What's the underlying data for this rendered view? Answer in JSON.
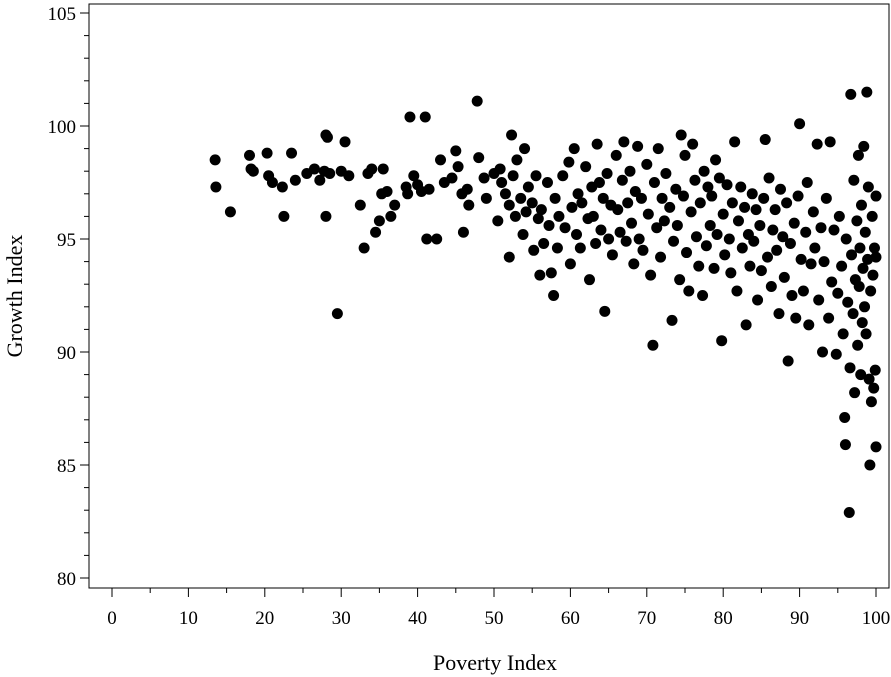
{
  "chart_data": {
    "type": "scatter",
    "title": "",
    "xlabel": "Poverty Index",
    "ylabel": "Growth Index",
    "xlim": [
      0,
      100
    ],
    "ylim": [
      80,
      105
    ],
    "x_ticks": [
      "0",
      "10",
      "20",
      "30",
      "40",
      "50",
      "60",
      "70",
      "80",
      "90",
      "100"
    ],
    "y_ticks": [
      "80",
      "85",
      "90",
      "95",
      "100",
      "105"
    ],
    "grid": false,
    "marker_color": "#000000",
    "points": [
      [
        13.5,
        98.5
      ],
      [
        13.6,
        97.3
      ],
      [
        15.5,
        96.2
      ],
      [
        18,
        98.7
      ],
      [
        18.2,
        98.1
      ],
      [
        18.5,
        98.0
      ],
      [
        20.3,
        98.8
      ],
      [
        20.5,
        97.8
      ],
      [
        21,
        97.5
      ],
      [
        22.3,
        97.3
      ],
      [
        22.5,
        96.0
      ],
      [
        23.5,
        98.8
      ],
      [
        24,
        97.6
      ],
      [
        25.5,
        97.9
      ],
      [
        26.5,
        98.1
      ],
      [
        27.2,
        97.6
      ],
      [
        28,
        99.6
      ],
      [
        28.2,
        99.5
      ],
      [
        27.8,
        98.0
      ],
      [
        28.5,
        97.9
      ],
      [
        28,
        96.0
      ],
      [
        29.5,
        91.7
      ],
      [
        30,
        98.0
      ],
      [
        30.5,
        99.3
      ],
      [
        31,
        97.8
      ],
      [
        32.5,
        96.5
      ],
      [
        33,
        94.6
      ],
      [
        33.5,
        97.9
      ],
      [
        34,
        98.1
      ],
      [
        34.5,
        95.3
      ],
      [
        35,
        95.8
      ],
      [
        35.3,
        97.0
      ],
      [
        35.5,
        98.1
      ],
      [
        36,
        97.1
      ],
      [
        36.5,
        96.0
      ],
      [
        37,
        96.5
      ],
      [
        38.5,
        97.3
      ],
      [
        38.7,
        97.0
      ],
      [
        39,
        100.4
      ],
      [
        39.5,
        97.8
      ],
      [
        40,
        97.4
      ],
      [
        40.5,
        97.1
      ],
      [
        41,
        100.4
      ],
      [
        41.2,
        95.0
      ],
      [
        41.5,
        97.2
      ],
      [
        42.5,
        95.0
      ],
      [
        43,
        98.5
      ],
      [
        43.5,
        97.5
      ],
      [
        44.5,
        97.7
      ],
      [
        45,
        98.9
      ],
      [
        45.3,
        98.2
      ],
      [
        45.8,
        97.0
      ],
      [
        46,
        95.3
      ],
      [
        46.5,
        97.2
      ],
      [
        46.7,
        96.5
      ],
      [
        47.8,
        101.1
      ],
      [
        48,
        98.6
      ],
      [
        48.7,
        97.7
      ],
      [
        49,
        96.8
      ],
      [
        50,
        97.9
      ],
      [
        50.5,
        95.8
      ],
      [
        50.8,
        98.1
      ],
      [
        51,
        97.5
      ],
      [
        51.5,
        97.0
      ],
      [
        52,
        96.5
      ],
      [
        52,
        94.2
      ],
      [
        52.3,
        99.6
      ],
      [
        52.5,
        97.8
      ],
      [
        52.8,
        96.0
      ],
      [
        53,
        98.5
      ],
      [
        53.5,
        96.8
      ],
      [
        53.8,
        95.2
      ],
      [
        54,
        99.0
      ],
      [
        54.2,
        96.2
      ],
      [
        54.5,
        97.3
      ],
      [
        55,
        96.6
      ],
      [
        55.2,
        94.5
      ],
      [
        55.5,
        97.8
      ],
      [
        55.8,
        95.9
      ],
      [
        56,
        93.4
      ],
      [
        56.2,
        96.3
      ],
      [
        56.5,
        94.8
      ],
      [
        57,
        97.5
      ],
      [
        57.2,
        95.6
      ],
      [
        57.5,
        93.5
      ],
      [
        57.8,
        92.5
      ],
      [
        58,
        96.8
      ],
      [
        58.3,
        94.6
      ],
      [
        58.5,
        96.0
      ],
      [
        59,
        97.8
      ],
      [
        59.3,
        95.5
      ],
      [
        59.8,
        98.4
      ],
      [
        60,
        93.9
      ],
      [
        60.2,
        96.4
      ],
      [
        60.5,
        99.0
      ],
      [
        60.8,
        95.2
      ],
      [
        61,
        97.0
      ],
      [
        61.3,
        94.6
      ],
      [
        61.5,
        96.6
      ],
      [
        62,
        98.2
      ],
      [
        62.3,
        95.9
      ],
      [
        62.5,
        93.2
      ],
      [
        62.8,
        97.3
      ],
      [
        63,
        96.0
      ],
      [
        63.3,
        94.8
      ],
      [
        63.5,
        99.2
      ],
      [
        63.8,
        97.5
      ],
      [
        64,
        95.4
      ],
      [
        64.3,
        96.8
      ],
      [
        64.5,
        91.8
      ],
      [
        64.8,
        97.9
      ],
      [
        65,
        95.0
      ],
      [
        65.3,
        96.5
      ],
      [
        65.5,
        94.3
      ],
      [
        66,
        98.7
      ],
      [
        66.2,
        96.3
      ],
      [
        66.5,
        95.3
      ],
      [
        66.8,
        97.6
      ],
      [
        67,
        99.3
      ],
      [
        67.3,
        94.9
      ],
      [
        67.5,
        96.6
      ],
      [
        67.8,
        98.0
      ],
      [
        68,
        95.7
      ],
      [
        68.3,
        93.9
      ],
      [
        68.5,
        97.1
      ],
      [
        68.8,
        99.1
      ],
      [
        69,
        95.0
      ],
      [
        69.3,
        96.8
      ],
      [
        69.5,
        94.5
      ],
      [
        70,
        98.3
      ],
      [
        70.2,
        96.1
      ],
      [
        70.5,
        93.4
      ],
      [
        70.8,
        90.3
      ],
      [
        71,
        97.5
      ],
      [
        71.3,
        95.5
      ],
      [
        71.5,
        99.0
      ],
      [
        71.8,
        94.2
      ],
      [
        72,
        96.8
      ],
      [
        72.3,
        95.8
      ],
      [
        72.5,
        97.9
      ],
      [
        73,
        96.4
      ],
      [
        73.3,
        91.4
      ],
      [
        73.5,
        94.9
      ],
      [
        73.8,
        97.2
      ],
      [
        74,
        95.6
      ],
      [
        74.3,
        93.2
      ],
      [
        74.5,
        99.6
      ],
      [
        74.8,
        96.9
      ],
      [
        75,
        98.7
      ],
      [
        75.2,
        94.4
      ],
      [
        75.5,
        92.7
      ],
      [
        75.8,
        96.2
      ],
      [
        76,
        99.2
      ],
      [
        76.3,
        97.6
      ],
      [
        76.5,
        95.1
      ],
      [
        76.8,
        93.8
      ],
      [
        77,
        96.6
      ],
      [
        77.3,
        92.5
      ],
      [
        77.5,
        98.0
      ],
      [
        77.8,
        94.7
      ],
      [
        78,
        97.3
      ],
      [
        78.3,
        95.6
      ],
      [
        78.5,
        96.9
      ],
      [
        78.8,
        93.7
      ],
      [
        79,
        98.5
      ],
      [
        79.2,
        95.2
      ],
      [
        79.5,
        97.7
      ],
      [
        79.8,
        90.5
      ],
      [
        80,
        96.1
      ],
      [
        80.2,
        94.3
      ],
      [
        80.5,
        97.4
      ],
      [
        80.8,
        95.0
      ],
      [
        81,
        93.5
      ],
      [
        81.2,
        96.6
      ],
      [
        81.5,
        99.3
      ],
      [
        81.8,
        92.7
      ],
      [
        82,
        95.8
      ],
      [
        82.3,
        97.3
      ],
      [
        82.5,
        94.6
      ],
      [
        82.8,
        96.4
      ],
      [
        83,
        91.2
      ],
      [
        83.3,
        95.2
      ],
      [
        83.5,
        93.8
      ],
      [
        83.8,
        97.0
      ],
      [
        84,
        94.9
      ],
      [
        84.3,
        96.3
      ],
      [
        84.5,
        92.3
      ],
      [
        84.8,
        95.6
      ],
      [
        85,
        93.6
      ],
      [
        85.3,
        96.8
      ],
      [
        85.5,
        99.4
      ],
      [
        85.8,
        94.2
      ],
      [
        86,
        97.7
      ],
      [
        86.3,
        92.9
      ],
      [
        86.5,
        95.4
      ],
      [
        86.8,
        96.3
      ],
      [
        87,
        94.5
      ],
      [
        87.3,
        91.7
      ],
      [
        87.5,
        97.2
      ],
      [
        87.8,
        95.1
      ],
      [
        88,
        93.3
      ],
      [
        88.3,
        96.6
      ],
      [
        88.5,
        89.6
      ],
      [
        88.8,
        94.8
      ],
      [
        89,
        92.5
      ],
      [
        89.3,
        95.7
      ],
      [
        89.5,
        91.5
      ],
      [
        89.8,
        96.9
      ],
      [
        90,
        100.1
      ],
      [
        90.2,
        94.1
      ],
      [
        90.5,
        92.7
      ],
      [
        90.8,
        95.3
      ],
      [
        91,
        97.5
      ],
      [
        91.2,
        91.2
      ],
      [
        91.5,
        93.9
      ],
      [
        91.8,
        96.2
      ],
      [
        92,
        94.6
      ],
      [
        92.3,
        99.2
      ],
      [
        92.5,
        92.3
      ],
      [
        92.8,
        95.5
      ],
      [
        93,
        90.0
      ],
      [
        93.2,
        94.0
      ],
      [
        93.5,
        96.8
      ],
      [
        93.8,
        91.5
      ],
      [
        94,
        99.3
      ],
      [
        94.2,
        93.1
      ],
      [
        94.5,
        95.4
      ],
      [
        94.8,
        89.9
      ],
      [
        95,
        92.6
      ],
      [
        95.2,
        96.0
      ],
      [
        95.5,
        93.8
      ],
      [
        95.7,
        90.8
      ],
      [
        95.9,
        87.1
      ],
      [
        96,
        85.9
      ],
      [
        96.1,
        95.0
      ],
      [
        96.3,
        92.2
      ],
      [
        96.5,
        82.9
      ],
      [
        96.6,
        89.3
      ],
      [
        96.7,
        101.4
      ],
      [
        96.8,
        94.3
      ],
      [
        97,
        91.7
      ],
      [
        97.1,
        97.6
      ],
      [
        97.2,
        88.2
      ],
      [
        97.3,
        93.2
      ],
      [
        97.5,
        95.8
      ],
      [
        97.6,
        90.3
      ],
      [
        97.7,
        98.7
      ],
      [
        97.8,
        92.9
      ],
      [
        97.9,
        94.6
      ],
      [
        98,
        89.0
      ],
      [
        98.1,
        96.5
      ],
      [
        98.2,
        91.3
      ],
      [
        98.3,
        93.7
      ],
      [
        98.4,
        99.1
      ],
      [
        98.5,
        92.0
      ],
      [
        98.6,
        95.3
      ],
      [
        98.7,
        90.8
      ],
      [
        98.8,
        101.5
      ],
      [
        98.9,
        94.1
      ],
      [
        99,
        97.3
      ],
      [
        99.1,
        88.8
      ],
      [
        99.2,
        85.0
      ],
      [
        99.3,
        92.7
      ],
      [
        99.4,
        87.8
      ],
      [
        99.5,
        96.0
      ],
      [
        99.6,
        93.4
      ],
      [
        99.7,
        88.4
      ],
      [
        99.8,
        94.6
      ],
      [
        99.9,
        89.2
      ],
      [
        100,
        85.8
      ],
      [
        100,
        94.2
      ],
      [
        100,
        96.9
      ]
    ]
  }
}
